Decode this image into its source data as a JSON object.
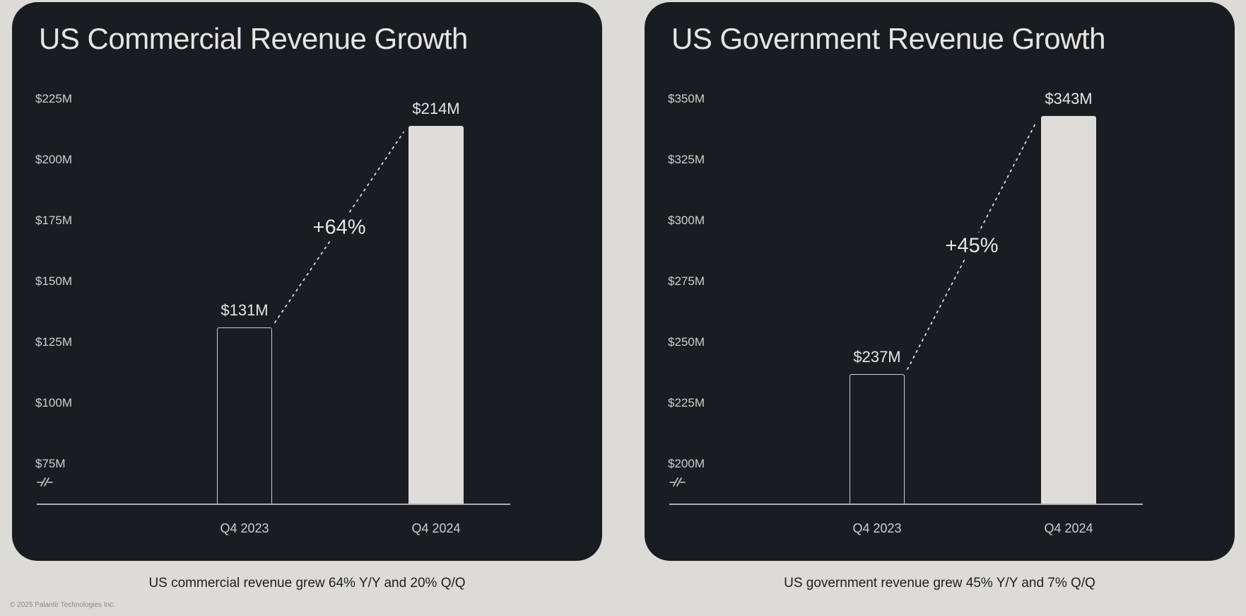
{
  "page": {
    "footer": "© 2025 Palantir Technologies Inc."
  },
  "colors": {
    "background": "#dcdbd8",
    "panel": "#191d21",
    "bar_fill": "#deddda",
    "bar_outline": "#cfcecb",
    "text_light": "#e6e5e2",
    "tick_text": "#cfcecb",
    "axis_line": "#b0afac",
    "dotted_line": "#dddcd9",
    "caption_text": "#1f1f1f",
    "footer_text": "#8a8a88"
  },
  "chart_data": [
    {
      "type": "bar",
      "title": "US Commercial Revenue Growth",
      "categories": [
        "Q4 2023",
        "Q4 2024"
      ],
      "values": [
        131,
        214
      ],
      "value_labels": [
        "$131M",
        "$214M"
      ],
      "bar_styles": [
        "outline",
        "filled"
      ],
      "growth_annotation": "+64%",
      "ytick_values": [
        225,
        200,
        175,
        150,
        125,
        100,
        75
      ],
      "ytick_labels": [
        "$225M",
        "$200M",
        "$175M",
        "$150M",
        "$125M",
        "$100M",
        "$75M"
      ],
      "ytick_step": 25,
      "ylim": [
        75,
        225
      ],
      "axis_break": true,
      "grid": false,
      "legend": false,
      "xlabel": "",
      "ylabel": "",
      "caption": "US commercial revenue grew 64% Y/Y and 20% Q/Q"
    },
    {
      "type": "bar",
      "title": "US Government Revenue Growth",
      "categories": [
        "Q4 2023",
        "Q4 2024"
      ],
      "values": [
        237,
        343
      ],
      "value_labels": [
        "$237M",
        "$343M"
      ],
      "bar_styles": [
        "outline",
        "filled"
      ],
      "growth_annotation": "+45%",
      "ytick_values": [
        350,
        325,
        300,
        275,
        250,
        225,
        200
      ],
      "ytick_labels": [
        "$350M",
        "$325M",
        "$300M",
        "$275M",
        "$250M",
        "$225M",
        "$200M"
      ],
      "ytick_step": 25,
      "ylim": [
        200,
        350
      ],
      "axis_break": true,
      "grid": false,
      "legend": false,
      "xlabel": "",
      "ylabel": "",
      "caption": "US government revenue grew 45% Y/Y and 7% Q/Q"
    }
  ]
}
